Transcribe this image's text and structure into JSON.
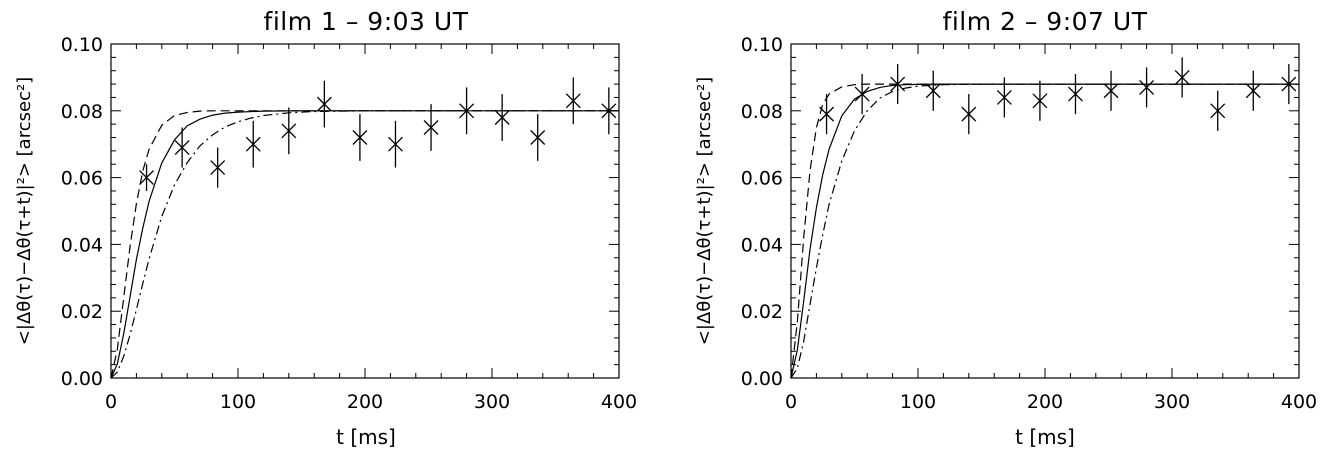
{
  "chart_data": [
    {
      "type": "scatter",
      "title": "film 1 – 9:03 UT",
      "xlabel": "t  [ms]",
      "ylabel": "<|Δθ(τ)−Δθ(τ+t)|²>  [arcsec²]",
      "xlim": [
        0,
        400
      ],
      "ylim": [
        0,
        0.1
      ],
      "x_ticks": [
        "0",
        "100",
        "200",
        "300",
        "400"
      ],
      "y_ticks": [
        "0.00",
        "0.02",
        "0.04",
        "0.06",
        "0.08",
        "0.10"
      ],
      "grid": false,
      "points": [
        {
          "x": 28,
          "y": 0.06,
          "err": 0.004
        },
        {
          "x": 56,
          "y": 0.069,
          "err": 0.006
        },
        {
          "x": 84,
          "y": 0.063,
          "err": 0.006
        },
        {
          "x": 112,
          "y": 0.07,
          "err": 0.007
        },
        {
          "x": 140,
          "y": 0.074,
          "err": 0.007
        },
        {
          "x": 168,
          "y": 0.082,
          "err": 0.007
        },
        {
          "x": 196,
          "y": 0.072,
          "err": 0.007
        },
        {
          "x": 224,
          "y": 0.07,
          "err": 0.007
        },
        {
          "x": 252,
          "y": 0.075,
          "err": 0.007
        },
        {
          "x": 280,
          "y": 0.08,
          "err": 0.007
        },
        {
          "x": 308,
          "y": 0.078,
          "err": 0.007
        },
        {
          "x": 336,
          "y": 0.072,
          "err": 0.007
        },
        {
          "x": 364,
          "y": 0.083,
          "err": 0.007
        },
        {
          "x": 392,
          "y": 0.08,
          "err": 0.007
        }
      ],
      "curves": [
        {
          "style": "solid",
          "x": [
            0,
            5,
            10,
            15,
            20,
            25,
            30,
            40,
            50,
            60,
            70,
            80,
            90,
            100,
            120,
            150,
            200,
            300,
            400
          ],
          "y": [
            0,
            0.0042,
            0.0132,
            0.0244,
            0.0355,
            0.0449,
            0.0529,
            0.0644,
            0.0713,
            0.0755,
            0.0775,
            0.0787,
            0.0793,
            0.0796,
            0.0799,
            0.08,
            0.08,
            0.08,
            0.08
          ]
        },
        {
          "style": "dashed",
          "x": [
            0,
            5,
            10,
            15,
            20,
            25,
            30,
            40,
            50,
            60,
            70,
            80,
            90,
            100,
            150,
            200,
            300,
            400
          ],
          "y": [
            0,
            0.0085,
            0.024,
            0.0395,
            0.0522,
            0.062,
            0.0685,
            0.0757,
            0.0786,
            0.0795,
            0.0799,
            0.08,
            0.08,
            0.08,
            0.08,
            0.08,
            0.08,
            0.08
          ]
        },
        {
          "style": "dashdot",
          "x": [
            0,
            5,
            10,
            15,
            20,
            25,
            30,
            40,
            50,
            60,
            70,
            80,
            90,
            100,
            110,
            120,
            140,
            160,
            200,
            300,
            400
          ],
          "y": [
            0,
            0.0018,
            0.0065,
            0.013,
            0.0205,
            0.0283,
            0.0357,
            0.0484,
            0.0578,
            0.0645,
            0.0695,
            0.0728,
            0.0752,
            0.0767,
            0.0778,
            0.0786,
            0.0794,
            0.0798,
            0.08,
            0.08,
            0.08
          ]
        }
      ]
    },
    {
      "type": "scatter",
      "title": "film 2 – 9:07 UT",
      "xlabel": "t  [ms]",
      "ylabel": "<|Δθ(τ)−Δθ(τ+t)|²>  [arcsec²]",
      "xlim": [
        0,
        400
      ],
      "ylim": [
        0,
        0.1
      ],
      "x_ticks": [
        "0",
        "100",
        "200",
        "300",
        "400"
      ],
      "y_ticks": [
        "0.00",
        "0.02",
        "0.04",
        "0.06",
        "0.08",
        "0.10"
      ],
      "grid": false,
      "points": [
        {
          "x": 28,
          "y": 0.079,
          "err": 0.006
        },
        {
          "x": 56,
          "y": 0.085,
          "err": 0.006
        },
        {
          "x": 84,
          "y": 0.088,
          "err": 0.006
        },
        {
          "x": 112,
          "y": 0.086,
          "err": 0.006
        },
        {
          "x": 140,
          "y": 0.079,
          "err": 0.006
        },
        {
          "x": 168,
          "y": 0.084,
          "err": 0.006
        },
        {
          "x": 196,
          "y": 0.083,
          "err": 0.006
        },
        {
          "x": 224,
          "y": 0.085,
          "err": 0.006
        },
        {
          "x": 252,
          "y": 0.086,
          "err": 0.006
        },
        {
          "x": 280,
          "y": 0.087,
          "err": 0.006
        },
        {
          "x": 308,
          "y": 0.09,
          "err": 0.006
        },
        {
          "x": 336,
          "y": 0.08,
          "err": 0.006
        },
        {
          "x": 364,
          "y": 0.086,
          "err": 0.006
        },
        {
          "x": 392,
          "y": 0.088,
          "err": 0.006
        }
      ],
      "curves": [
        {
          "style": "solid",
          "x": [
            0,
            5,
            10,
            15,
            20,
            25,
            30,
            40,
            50,
            60,
            70,
            80,
            90,
            100,
            120,
            150,
            200,
            300,
            400
          ],
          "y": [
            0,
            0.0085,
            0.023,
            0.0385,
            0.051,
            0.061,
            0.0685,
            0.0785,
            0.0835,
            0.0858,
            0.087,
            0.0876,
            0.0878,
            0.0879,
            0.088,
            0.088,
            0.088,
            0.088,
            0.088
          ]
        },
        {
          "style": "dashed",
          "x": [
            0,
            5,
            10,
            15,
            20,
            25,
            30,
            40,
            50,
            60,
            70,
            80,
            100,
            150,
            200,
            300,
            400
          ],
          "y": [
            0,
            0.017,
            0.042,
            0.062,
            0.075,
            0.082,
            0.085,
            0.0872,
            0.0878,
            0.088,
            0.088,
            0.088,
            0.088,
            0.088,
            0.088,
            0.088,
            0.088
          ]
        },
        {
          "style": "dashdot",
          "x": [
            0,
            5,
            10,
            15,
            20,
            25,
            30,
            40,
            50,
            60,
            70,
            80,
            90,
            100,
            120,
            150,
            200,
            300,
            400
          ],
          "y": [
            0,
            0.003,
            0.011,
            0.022,
            0.033,
            0.043,
            0.052,
            0.065,
            0.074,
            0.08,
            0.0838,
            0.0858,
            0.0868,
            0.0874,
            0.0878,
            0.088,
            0.088,
            0.088,
            0.088
          ]
        }
      ]
    }
  ]
}
